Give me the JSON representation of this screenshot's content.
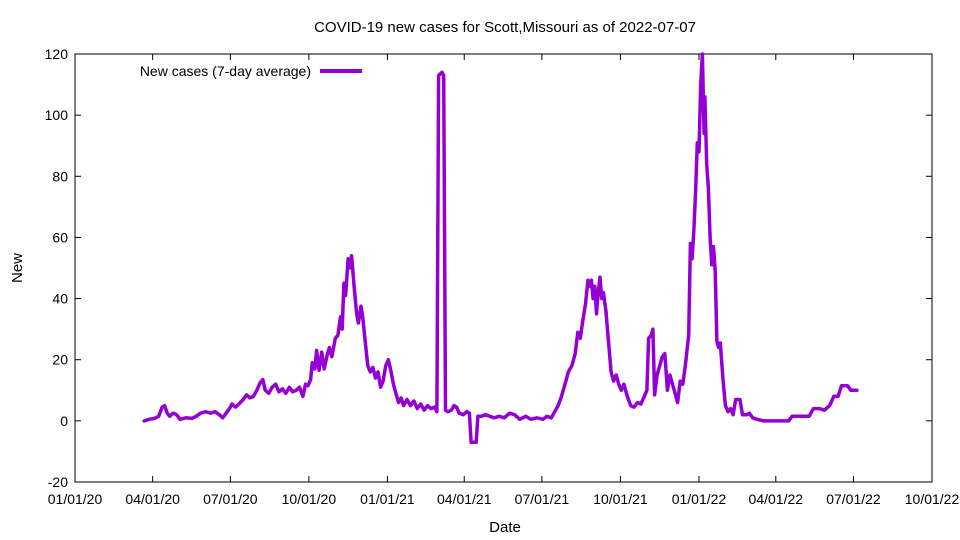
{
  "chart_data": {
    "type": "line",
    "title": "COVID-19 new cases for Scott,Missouri as of 2022-07-07",
    "xlabel": "Date",
    "ylabel": "New",
    "x_axis": {
      "type": "date",
      "min": "2020-01-01",
      "max": "2022-10-01"
    },
    "ylim": [
      -20,
      120
    ],
    "xticks": [
      {
        "date": "2020-01-01",
        "label": "01/01/20"
      },
      {
        "date": "2020-04-01",
        "label": "04/01/20"
      },
      {
        "date": "2020-07-01",
        "label": "07/01/20"
      },
      {
        "date": "2020-10-01",
        "label": "10/01/20"
      },
      {
        "date": "2021-01-01",
        "label": "01/01/21"
      },
      {
        "date": "2021-04-01",
        "label": "04/01/21"
      },
      {
        "date": "2021-07-01",
        "label": "07/01/21"
      },
      {
        "date": "2021-10-01",
        "label": "10/01/21"
      },
      {
        "date": "2022-01-01",
        "label": "01/01/22"
      },
      {
        "date": "2022-04-01",
        "label": "04/01/22"
      },
      {
        "date": "2022-07-01",
        "label": "07/01/22"
      },
      {
        "date": "2022-10-01",
        "label": "10/01/22"
      }
    ],
    "yticks": [
      -20,
      0,
      20,
      40,
      60,
      80,
      100,
      120
    ],
    "grid": false,
    "legend": {
      "position": "top-left"
    },
    "series": [
      {
        "name": "New cases (7-day average)",
        "color": "#9400d3",
        "points": [
          [
            "2020-03-22",
            0
          ],
          [
            "2020-03-28",
            0.5
          ],
          [
            "2020-04-03",
            0.8
          ],
          [
            "2020-04-08",
            1.5
          ],
          [
            "2020-04-12",
            4.5
          ],
          [
            "2020-04-15",
            5
          ],
          [
            "2020-04-18",
            2.5
          ],
          [
            "2020-04-21",
            1.5
          ],
          [
            "2020-04-25",
            2.5
          ],
          [
            "2020-04-29",
            2
          ],
          [
            "2020-05-03",
            0.5
          ],
          [
            "2020-05-10",
            1
          ],
          [
            "2020-05-17",
            0.8
          ],
          [
            "2020-05-22",
            1.5
          ],
          [
            "2020-05-27",
            2.5
          ],
          [
            "2020-06-02",
            3
          ],
          [
            "2020-06-08",
            2.5
          ],
          [
            "2020-06-13",
            3
          ],
          [
            "2020-06-18",
            2
          ],
          [
            "2020-06-22",
            1
          ],
          [
            "2020-06-26",
            2.5
          ],
          [
            "2020-06-30",
            4
          ],
          [
            "2020-07-03",
            5.5
          ],
          [
            "2020-07-07",
            4.5
          ],
          [
            "2020-07-11",
            5.5
          ],
          [
            "2020-07-16",
            7
          ],
          [
            "2020-07-20",
            8.5
          ],
          [
            "2020-07-24",
            7.5
          ],
          [
            "2020-07-28",
            8
          ],
          [
            "2020-08-01",
            10
          ],
          [
            "2020-08-05",
            12.5
          ],
          [
            "2020-08-08",
            13.5
          ],
          [
            "2020-08-11",
            10
          ],
          [
            "2020-08-15",
            9
          ],
          [
            "2020-08-19",
            11
          ],
          [
            "2020-08-23",
            12
          ],
          [
            "2020-08-27",
            9.5
          ],
          [
            "2020-08-31",
            10.5
          ],
          [
            "2020-09-04",
            9
          ],
          [
            "2020-09-08",
            11
          ],
          [
            "2020-09-12",
            9.5
          ],
          [
            "2020-09-16",
            10
          ],
          [
            "2020-09-20",
            11
          ],
          [
            "2020-09-24",
            8
          ],
          [
            "2020-09-27",
            12
          ],
          [
            "2020-09-30",
            11.5
          ],
          [
            "2020-10-03",
            13.5
          ],
          [
            "2020-10-05",
            19
          ],
          [
            "2020-10-08",
            17
          ],
          [
            "2020-10-10",
            23
          ],
          [
            "2020-10-13",
            16.5
          ],
          [
            "2020-10-16",
            22.5
          ],
          [
            "2020-10-19",
            17
          ],
          [
            "2020-10-22",
            21
          ],
          [
            "2020-10-25",
            24
          ],
          [
            "2020-10-28",
            21
          ],
          [
            "2020-11-01",
            27
          ],
          [
            "2020-11-04",
            28
          ],
          [
            "2020-11-07",
            34
          ],
          [
            "2020-11-09",
            30
          ],
          [
            "2020-11-11",
            45
          ],
          [
            "2020-11-13",
            41
          ],
          [
            "2020-11-16",
            53
          ],
          [
            "2020-11-18",
            50
          ],
          [
            "2020-11-20",
            54
          ],
          [
            "2020-11-23",
            44
          ],
          [
            "2020-11-26",
            35
          ],
          [
            "2020-11-28",
            32
          ],
          [
            "2020-12-01",
            37.5
          ],
          [
            "2020-12-03",
            34
          ],
          [
            "2020-12-06",
            26
          ],
          [
            "2020-12-09",
            18
          ],
          [
            "2020-12-12",
            16
          ],
          [
            "2020-12-15",
            17.5
          ],
          [
            "2020-12-18",
            14
          ],
          [
            "2020-12-21",
            16
          ],
          [
            "2020-12-24",
            11
          ],
          [
            "2020-12-27",
            13
          ],
          [
            "2020-12-30",
            18
          ],
          [
            "2021-01-02",
            20
          ],
          [
            "2021-01-05",
            16.5
          ],
          [
            "2021-01-08",
            12
          ],
          [
            "2021-01-11",
            9
          ],
          [
            "2021-01-14",
            6
          ],
          [
            "2021-01-17",
            7.5
          ],
          [
            "2021-01-20",
            5
          ],
          [
            "2021-01-24",
            7
          ],
          [
            "2021-01-28",
            5
          ],
          [
            "2021-02-01",
            6.5
          ],
          [
            "2021-02-05",
            4
          ],
          [
            "2021-02-09",
            5.5
          ],
          [
            "2021-02-13",
            3.5
          ],
          [
            "2021-02-17",
            5
          ],
          [
            "2021-02-21",
            4
          ],
          [
            "2021-02-25",
            4.5
          ],
          [
            "2021-02-28",
            3
          ],
          [
            "2021-03-02",
            113
          ],
          [
            "2021-03-06",
            114
          ],
          [
            "2021-03-08",
            113
          ],
          [
            "2021-03-10",
            3.5
          ],
          [
            "2021-03-13",
            3
          ],
          [
            "2021-03-17",
            3.5
          ],
          [
            "2021-03-20",
            5
          ],
          [
            "2021-03-23",
            4.5
          ],
          [
            "2021-03-26",
            2.5
          ],
          [
            "2021-03-31",
            2
          ],
          [
            "2021-04-04",
            3
          ],
          [
            "2021-04-07",
            2.5
          ],
          [
            "2021-04-09",
            -7
          ],
          [
            "2021-04-15",
            -7
          ],
          [
            "2021-04-17",
            1.5
          ],
          [
            "2021-04-21",
            1.5
          ],
          [
            "2021-04-26",
            2
          ],
          [
            "2021-05-01",
            1.5
          ],
          [
            "2021-05-06",
            1
          ],
          [
            "2021-05-12",
            1.5
          ],
          [
            "2021-05-18",
            1
          ],
          [
            "2021-05-24",
            2.5
          ],
          [
            "2021-05-30",
            2
          ],
          [
            "2021-06-05",
            0.5
          ],
          [
            "2021-06-12",
            1.5
          ],
          [
            "2021-06-18",
            0.5
          ],
          [
            "2021-06-25",
            1
          ],
          [
            "2021-07-02",
            0.5
          ],
          [
            "2021-07-07",
            1.5
          ],
          [
            "2021-07-12",
            1
          ],
          [
            "2021-07-16",
            3
          ],
          [
            "2021-07-20",
            5
          ],
          [
            "2021-07-24",
            8
          ],
          [
            "2021-07-28",
            12
          ],
          [
            "2021-08-01",
            16
          ],
          [
            "2021-08-05",
            18
          ],
          [
            "2021-08-09",
            22
          ],
          [
            "2021-08-12",
            29
          ],
          [
            "2021-08-15",
            27
          ],
          [
            "2021-08-18",
            33
          ],
          [
            "2021-08-21",
            38
          ],
          [
            "2021-08-24",
            46
          ],
          [
            "2021-08-26",
            44
          ],
          [
            "2021-08-28",
            46
          ],
          [
            "2021-08-30",
            40
          ],
          [
            "2021-09-01",
            44
          ],
          [
            "2021-09-03",
            35
          ],
          [
            "2021-09-05",
            42
          ],
          [
            "2021-09-07",
            47
          ],
          [
            "2021-09-09",
            40
          ],
          [
            "2021-09-11",
            42
          ],
          [
            "2021-09-14",
            36
          ],
          [
            "2021-09-17",
            26
          ],
          [
            "2021-09-20",
            16
          ],
          [
            "2021-09-23",
            13
          ],
          [
            "2021-09-26",
            15
          ],
          [
            "2021-09-29",
            12
          ],
          [
            "2021-10-02",
            10
          ],
          [
            "2021-10-05",
            12
          ],
          [
            "2021-10-09",
            8
          ],
          [
            "2021-10-13",
            5
          ],
          [
            "2021-10-17",
            4.5
          ],
          [
            "2021-10-21",
            6
          ],
          [
            "2021-10-25",
            5.5
          ],
          [
            "2021-10-29",
            8
          ],
          [
            "2021-11-01",
            10
          ],
          [
            "2021-11-03",
            27
          ],
          [
            "2021-11-06",
            28
          ],
          [
            "2021-11-08",
            30
          ],
          [
            "2021-11-10",
            8.5
          ],
          [
            "2021-11-13",
            15
          ],
          [
            "2021-11-16",
            18
          ],
          [
            "2021-11-19",
            21
          ],
          [
            "2021-11-22",
            22
          ],
          [
            "2021-11-25",
            10
          ],
          [
            "2021-11-28",
            15
          ],
          [
            "2021-12-01",
            12
          ],
          [
            "2021-12-04",
            9
          ],
          [
            "2021-12-07",
            6
          ],
          [
            "2021-12-10",
            13
          ],
          [
            "2021-12-13",
            12
          ],
          [
            "2021-12-16",
            18
          ],
          [
            "2021-12-20",
            28
          ],
          [
            "2021-12-22",
            58
          ],
          [
            "2021-12-24",
            53
          ],
          [
            "2021-12-26",
            62
          ],
          [
            "2021-12-28",
            75
          ],
          [
            "2021-12-30",
            91
          ],
          [
            "2022-01-01",
            88
          ],
          [
            "2022-01-03",
            110
          ],
          [
            "2022-01-05",
            120
          ],
          [
            "2022-01-07",
            94
          ],
          [
            "2022-01-08",
            106
          ],
          [
            "2022-01-10",
            84
          ],
          [
            "2022-01-12",
            76
          ],
          [
            "2022-01-14",
            60
          ],
          [
            "2022-01-16",
            51
          ],
          [
            "2022-01-18",
            57
          ],
          [
            "2022-01-20",
            49
          ],
          [
            "2022-01-22",
            26
          ],
          [
            "2022-01-24",
            24
          ],
          [
            "2022-01-26",
            25.5
          ],
          [
            "2022-01-29",
            14
          ],
          [
            "2022-02-01",
            5
          ],
          [
            "2022-02-04",
            3
          ],
          [
            "2022-02-07",
            4
          ],
          [
            "2022-02-10",
            2
          ],
          [
            "2022-02-13",
            7
          ],
          [
            "2022-02-18",
            7
          ],
          [
            "2022-02-21",
            2
          ],
          [
            "2022-02-26",
            2
          ],
          [
            "2022-03-01",
            2.5
          ],
          [
            "2022-03-05",
            1
          ],
          [
            "2022-03-10",
            0.5
          ],
          [
            "2022-03-18",
            0
          ],
          [
            "2022-03-28",
            0
          ],
          [
            "2022-04-08",
            0
          ],
          [
            "2022-04-16",
            0
          ],
          [
            "2022-04-20",
            1.5
          ],
          [
            "2022-04-28",
            1.5
          ],
          [
            "2022-05-05",
            1.5
          ],
          [
            "2022-05-10",
            1.5
          ],
          [
            "2022-05-15",
            4
          ],
          [
            "2022-05-22",
            4
          ],
          [
            "2022-05-28",
            3.5
          ],
          [
            "2022-06-03",
            5
          ],
          [
            "2022-06-08",
            8
          ],
          [
            "2022-06-13",
            8
          ],
          [
            "2022-06-17",
            11.5
          ],
          [
            "2022-06-24",
            11.5
          ],
          [
            "2022-06-28",
            10
          ],
          [
            "2022-07-05",
            10
          ]
        ]
      }
    ]
  }
}
